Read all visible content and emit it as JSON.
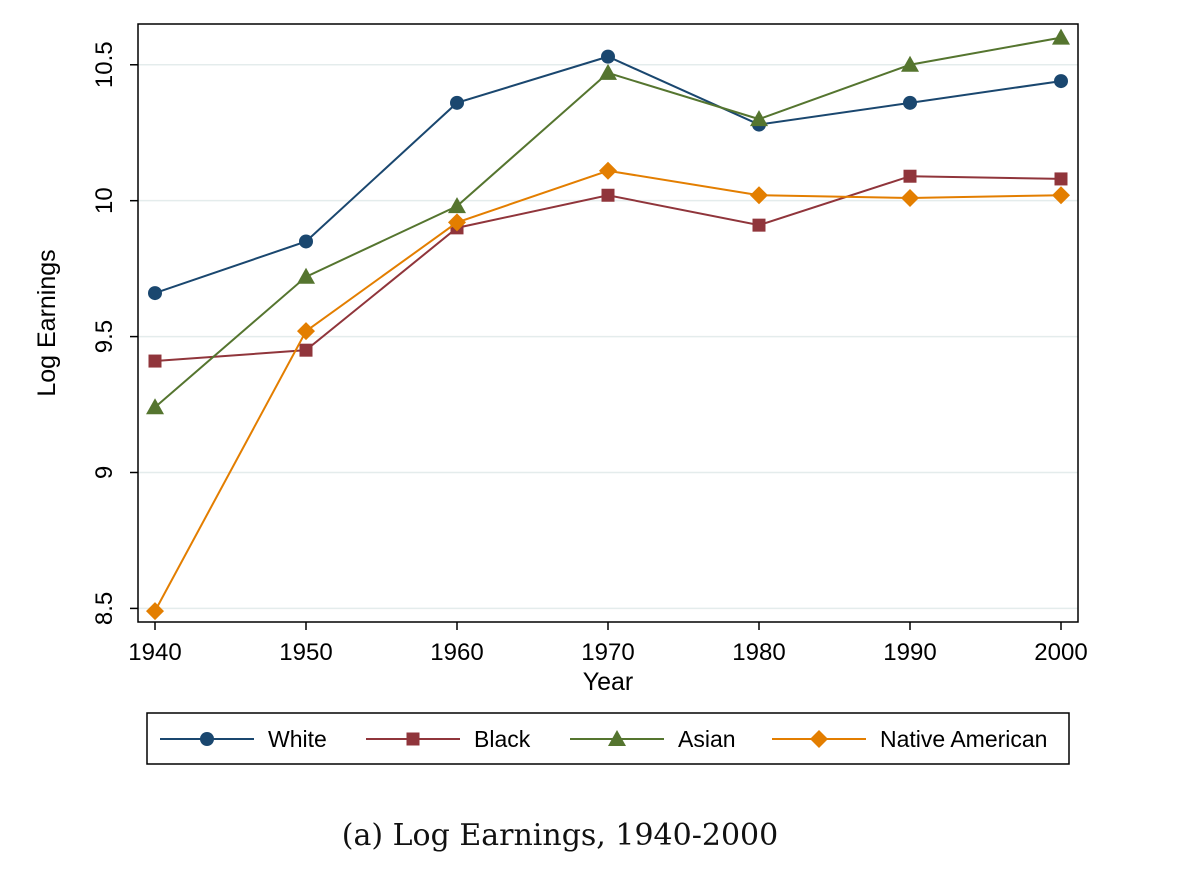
{
  "caption": "(a) Log Earnings, 1940-2000",
  "chart_data": {
    "type": "line",
    "title": "",
    "xlabel": "Year",
    "ylabel": "Log Earnings",
    "x": [
      1940,
      1950,
      1960,
      1970,
      1980,
      1990,
      2000
    ],
    "xlim": [
      1940,
      2000
    ],
    "ylim": [
      8.45,
      10.65
    ],
    "yticks": [
      8.5,
      9,
      9.5,
      10,
      10.5
    ],
    "ytick_labels": [
      "8.5",
      "9",
      "9.5",
      "10",
      "10.5"
    ],
    "xtick_labels": [
      "1940",
      "1950",
      "1960",
      "1970",
      "1980",
      "1990",
      "2000"
    ],
    "grid": true,
    "legend_position": "bottom",
    "series": [
      {
        "name": "White",
        "marker": "circle",
        "color": "#1a476f",
        "values": [
          9.66,
          9.85,
          10.36,
          10.53,
          10.28,
          10.36,
          10.44
        ]
      },
      {
        "name": "Black",
        "marker": "square",
        "color": "#90353b",
        "values": [
          9.41,
          9.45,
          9.9,
          10.02,
          9.91,
          10.09,
          10.08
        ]
      },
      {
        "name": "Asian",
        "marker": "triangle",
        "color": "#55752f",
        "values": [
          9.24,
          9.72,
          9.98,
          10.47,
          10.3,
          10.5,
          10.6
        ]
      },
      {
        "name": "Native American",
        "marker": "diamond",
        "color": "#e37e00",
        "values": [
          8.49,
          9.52,
          9.92,
          10.11,
          10.02,
          10.01,
          10.02
        ]
      }
    ]
  }
}
